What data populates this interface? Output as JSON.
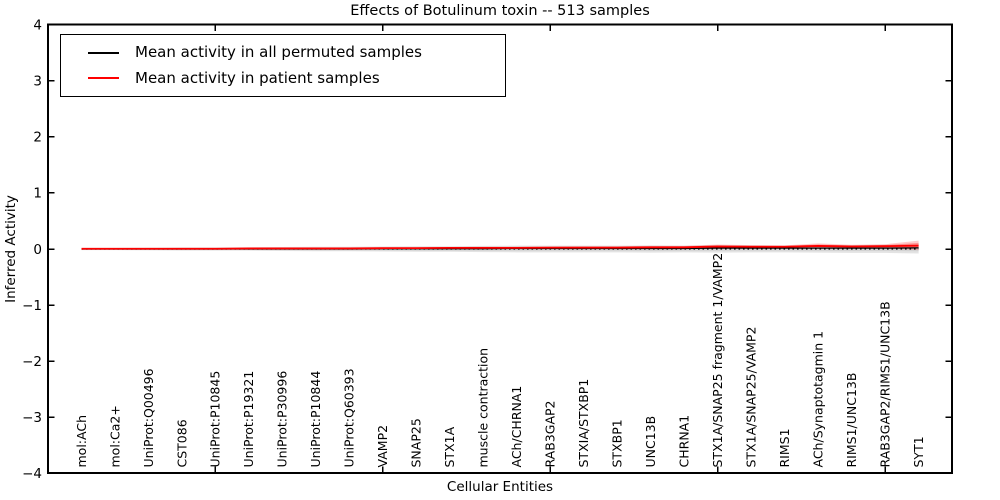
{
  "figure": {
    "title": "Effects of Botulinum toxin -- 513 samples",
    "xlabel": "Cellular Entities",
    "ylabel": "Inferred Activity"
  },
  "legend": {
    "items": [
      {
        "label": "Mean activity in all permuted samples",
        "color": "#000000"
      },
      {
        "label": "Mean activity in patient samples",
        "color": "#ff0000"
      }
    ]
  },
  "chart_data": {
    "type": "line",
    "title": "Effects of Botulinum toxin -- 513 samples",
    "xlabel": "Cellular Entities",
    "ylabel": "Inferred Activity",
    "ylim": [
      -4,
      4
    ],
    "yticks": [
      -4,
      -3,
      -2,
      -1,
      0,
      1,
      2,
      3,
      4
    ],
    "ytick_labels": [
      "−4",
      "−3",
      "−2",
      "−1",
      "0",
      "1",
      "2",
      "3",
      "4"
    ],
    "xlim": [
      0,
      27
    ],
    "xtick_data_positions": [
      5,
      10,
      15,
      20,
      25
    ],
    "grid": false,
    "legend_position": "upper left",
    "zero_line": {
      "y": 0,
      "style": "dotted",
      "color": "#000000"
    },
    "categories": [
      "mol:ACh",
      "mol:Ca2+",
      "UniProt:Q00496",
      "CST086",
      "UniProt:P10845",
      "UniProt:P19321",
      "UniProt:P30996",
      "UniProt:P10844",
      "UniProt:Q60393",
      "VAMP2",
      "SNAP25",
      "STX1A",
      "muscle contraction",
      "ACh/CHRNA1",
      "RAB3GAP2",
      "STXIA/STXBP1",
      "STXBP1",
      "UNC13B",
      "CHRNA1",
      "STX1A/SNAP25 fragment 1/VAMP2",
      "STX1A/SNAP25/VAMP2",
      "RIMS1",
      "ACh/Synaptotagmin 1",
      "RIMS1/UNC13B",
      "RAB3GAP2/RIMS1/UNC13B",
      "SYT1"
    ],
    "series": [
      {
        "name": "Mean activity in all permuted samples",
        "color": "#000000",
        "values": [
          0,
          0,
          0,
          0,
          0,
          0,
          0,
          0,
          0,
          0.005,
          0.005,
          0.005,
          0.005,
          0.01,
          0.01,
          0.01,
          0.01,
          0.01,
          0.01,
          0.015,
          0.015,
          0.015,
          0.015,
          0.015,
          0.015,
          0.02
        ],
        "band": {
          "upper": [
            0.02,
            0.02,
            0.025,
            0.03,
            0.03,
            0.03,
            0.035,
            0.04,
            0.04,
            0.045,
            0.05,
            0.05,
            0.055,
            0.06,
            0.06,
            0.06,
            0.06,
            0.065,
            0.06,
            0.07,
            0.065,
            0.06,
            0.07,
            0.07,
            0.075,
            0.08
          ],
          "lower": [
            -0.02,
            -0.02,
            -0.025,
            -0.03,
            -0.03,
            -0.03,
            -0.035,
            -0.04,
            -0.04,
            -0.045,
            -0.05,
            -0.05,
            -0.055,
            -0.06,
            -0.06,
            -0.06,
            -0.06,
            -0.065,
            -0.06,
            -0.065,
            -0.06,
            -0.06,
            -0.065,
            -0.07,
            -0.07,
            -0.08
          ],
          "color": "#999999"
        }
      },
      {
        "name": "Mean activity in patient samples",
        "color": "#ff0000",
        "values": [
          0.005,
          0.005,
          0.005,
          0.005,
          0.005,
          0.01,
          0.01,
          0.01,
          0.01,
          0.015,
          0.015,
          0.02,
          0.02,
          0.02,
          0.025,
          0.025,
          0.025,
          0.03,
          0.03,
          0.045,
          0.04,
          0.04,
          0.055,
          0.045,
          0.05,
          0.06
        ],
        "band": {
          "upper": [
            0.015,
            0.015,
            0.015,
            0.02,
            0.02,
            0.02,
            0.02,
            0.025,
            0.025,
            0.03,
            0.03,
            0.035,
            0.04,
            0.04,
            0.045,
            0.05,
            0.05,
            0.055,
            0.055,
            0.08,
            0.07,
            0.065,
            0.1,
            0.075,
            0.085,
            0.15
          ],
          "lower": [
            -0.005,
            -0.005,
            -0.005,
            -0.005,
            -0.005,
            -0.005,
            -0.005,
            -0.005,
            -0.005,
            -0.005,
            -0.005,
            0,
            0,
            0,
            0,
            0,
            0,
            0,
            0.005,
            0.01,
            0.01,
            0.01,
            0.015,
            0.01,
            0.01,
            -0.02
          ],
          "color": "#ff0000"
        }
      }
    ]
  }
}
